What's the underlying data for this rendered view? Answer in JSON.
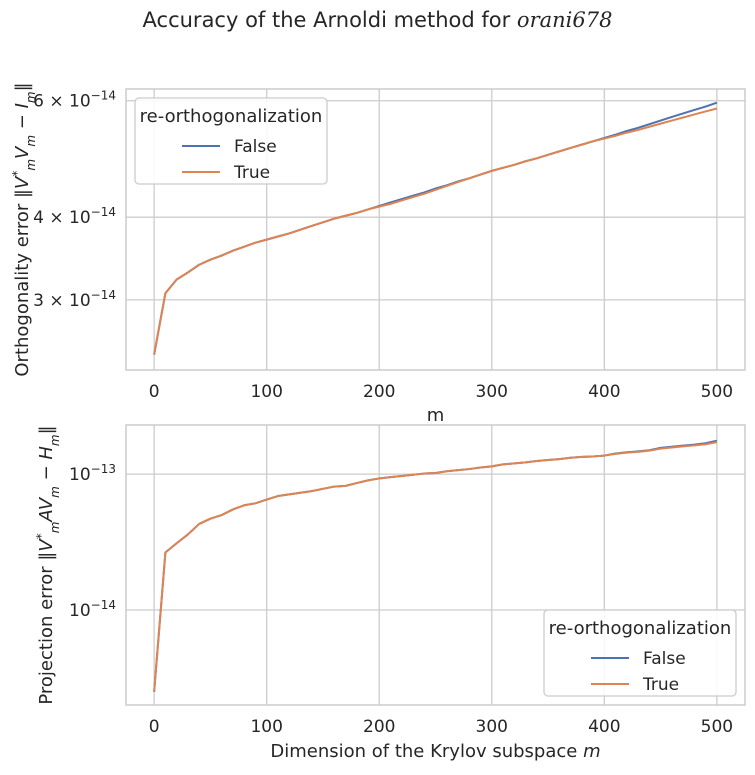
{
  "suptitle": {
    "prefix": "Accuracy of the Arnoldi method for ",
    "matrix_name": "orani678"
  },
  "colors": {
    "false": "#4c72b0",
    "true": "#dd8452",
    "grid": "#cccccc",
    "spine": "#cccccc"
  },
  "chart_data": [
    {
      "type": "line",
      "title": "",
      "xlabel": "m",
      "ylabel": "Orthogonality error ‖V*mVm − Im‖",
      "ylabel_parts": [
        "Orthogonality error ‖",
        "V",
        "*",
        "m",
        "V",
        "m",
        " − ",
        "I",
        "m",
        "‖"
      ],
      "yscale": "log",
      "xlim": [
        -25,
        525
      ],
      "ylim": [
        2.35e-14,
        6.25e-14
      ],
      "grid": true,
      "xticks": [
        0,
        100,
        200,
        300,
        400,
        500
      ],
      "yticks": [
        {
          "value": 3e-14,
          "mantissa": "3",
          "exp": "−14"
        },
        {
          "value": 4e-14,
          "mantissa": "4",
          "exp": "−14"
        },
        {
          "value": 6e-14,
          "mantissa": "6",
          "exp": "−14"
        }
      ],
      "legend": {
        "title": "re-orthogonalization",
        "placement": "upper-left"
      },
      "x": [
        0,
        10,
        20,
        30,
        40,
        50,
        60,
        70,
        80,
        90,
        100,
        110,
        120,
        130,
        140,
        150,
        160,
        170,
        180,
        190,
        200,
        210,
        220,
        230,
        240,
        250,
        260,
        270,
        280,
        290,
        300,
        310,
        320,
        330,
        340,
        350,
        360,
        370,
        380,
        390,
        400,
        410,
        420,
        430,
        440,
        450,
        460,
        470,
        480,
        490,
        500
      ],
      "series": [
        {
          "name": "False",
          "color": "#4c72b0",
          "values": [
            2.48e-14,
            3.07e-14,
            3.22e-14,
            3.3e-14,
            3.39e-14,
            3.45e-14,
            3.5e-14,
            3.56e-14,
            3.61e-14,
            3.66e-14,
            3.7e-14,
            3.74e-14,
            3.78e-14,
            3.83e-14,
            3.88e-14,
            3.93e-14,
            3.98e-14,
            4.02e-14,
            4.06e-14,
            4.11e-14,
            4.16e-14,
            4.21e-14,
            4.26e-14,
            4.31e-14,
            4.36e-14,
            4.42e-14,
            4.47e-14,
            4.53e-14,
            4.58e-14,
            4.64e-14,
            4.7e-14,
            4.75e-14,
            4.8e-14,
            4.86e-14,
            4.91e-14,
            4.97e-14,
            5.03e-14,
            5.09e-14,
            5.15e-14,
            5.21e-14,
            5.27e-14,
            5.33e-14,
            5.4e-14,
            5.46e-14,
            5.53e-14,
            5.6e-14,
            5.67e-14,
            5.74e-14,
            5.81e-14,
            5.88e-14,
            5.96e-14
          ]
        },
        {
          "name": "True",
          "color": "#dd8452",
          "values": [
            2.48e-14,
            3.07e-14,
            3.22e-14,
            3.3e-14,
            3.39e-14,
            3.45e-14,
            3.5e-14,
            3.56e-14,
            3.61e-14,
            3.66e-14,
            3.7e-14,
            3.74e-14,
            3.78e-14,
            3.83e-14,
            3.88e-14,
            3.93e-14,
            3.98e-14,
            4.02e-14,
            4.06e-14,
            4.11e-14,
            4.15e-14,
            4.19e-14,
            4.24e-14,
            4.29e-14,
            4.34e-14,
            4.4e-14,
            4.46e-14,
            4.52e-14,
            4.58e-14,
            4.64e-14,
            4.7e-14,
            4.75e-14,
            4.8e-14,
            4.86e-14,
            4.91e-14,
            4.97e-14,
            5.03e-14,
            5.09e-14,
            5.15e-14,
            5.21e-14,
            5.26e-14,
            5.31e-14,
            5.37e-14,
            5.42e-14,
            5.48e-14,
            5.54e-14,
            5.6e-14,
            5.66e-14,
            5.72e-14,
            5.78e-14,
            5.84e-14
          ]
        }
      ]
    },
    {
      "type": "line",
      "title": "",
      "xlabel": "Dimension of the Krylov subspace m",
      "xlabel_parts": [
        "Dimension of the Krylov subspace ",
        "m"
      ],
      "ylabel": "Projection error ‖V*mAVm − Hm‖",
      "ylabel_parts": [
        "Projection error ‖",
        "V",
        "*",
        "m",
        "AV",
        "m",
        " − ",
        "H",
        "m",
        "‖"
      ],
      "yscale": "log",
      "xlim": [
        -25,
        525
      ],
      "ylim": [
        2e-15,
        2.3e-13
      ],
      "grid": true,
      "xticks": [
        0,
        100,
        200,
        300,
        400,
        500
      ],
      "yticks": [
        {
          "value": 1e-14,
          "mantissa": "10",
          "exp": "−14"
        },
        {
          "value": 1e-13,
          "mantissa": "10",
          "exp": "−13"
        }
      ],
      "legend": {
        "title": "re-orthogonalization",
        "placement": "lower-right"
      },
      "x": [
        0,
        10,
        20,
        30,
        40,
        50,
        60,
        70,
        80,
        90,
        100,
        110,
        120,
        130,
        140,
        150,
        160,
        170,
        180,
        190,
        200,
        210,
        220,
        230,
        240,
        250,
        260,
        270,
        280,
        290,
        300,
        310,
        320,
        330,
        340,
        350,
        360,
        370,
        380,
        390,
        400,
        410,
        420,
        430,
        440,
        450,
        460,
        470,
        480,
        490,
        500
      ],
      "series": [
        {
          "name": "False",
          "color": "#4c72b0",
          "values": [
            2.5e-15,
            2.65e-14,
            3.1e-14,
            3.6e-14,
            4.3e-14,
            4.7e-14,
            5e-14,
            5.5e-14,
            5.9e-14,
            6.1e-14,
            6.5e-14,
            6.9e-14,
            7.1e-14,
            7.3e-14,
            7.5e-14,
            7.8e-14,
            8.1e-14,
            8.2e-14,
            8.6e-14,
            9e-14,
            9.3e-14,
            9.5e-14,
            9.7e-14,
            9.9e-14,
            1.01e-13,
            1.02e-13,
            1.05e-13,
            1.07e-13,
            1.09e-13,
            1.12e-13,
            1.14e-13,
            1.18e-13,
            1.2e-13,
            1.22e-13,
            1.25e-13,
            1.27e-13,
            1.29e-13,
            1.32e-13,
            1.34e-13,
            1.35e-13,
            1.37e-13,
            1.42e-13,
            1.45e-13,
            1.47e-13,
            1.5e-13,
            1.56e-13,
            1.59e-13,
            1.62e-13,
            1.65e-13,
            1.69e-13,
            1.76e-13
          ]
        },
        {
          "name": "True",
          "color": "#dd8452",
          "values": [
            2.5e-15,
            2.65e-14,
            3.1e-14,
            3.6e-14,
            4.3e-14,
            4.7e-14,
            5e-14,
            5.5e-14,
            5.9e-14,
            6.1e-14,
            6.5e-14,
            6.9e-14,
            7.1e-14,
            7.3e-14,
            7.5e-14,
            7.8e-14,
            8.1e-14,
            8.2e-14,
            8.6e-14,
            9e-14,
            9.3e-14,
            9.5e-14,
            9.7e-14,
            9.9e-14,
            1.01e-13,
            1.02e-13,
            1.05e-13,
            1.07e-13,
            1.09e-13,
            1.12e-13,
            1.14e-13,
            1.18e-13,
            1.2e-13,
            1.22e-13,
            1.25e-13,
            1.27e-13,
            1.29e-13,
            1.32e-13,
            1.34e-13,
            1.35e-13,
            1.37e-13,
            1.41e-13,
            1.44e-13,
            1.46e-13,
            1.49e-13,
            1.54e-13,
            1.57e-13,
            1.6e-13,
            1.63e-13,
            1.66e-13,
            1.72e-13
          ]
        }
      ]
    }
  ]
}
